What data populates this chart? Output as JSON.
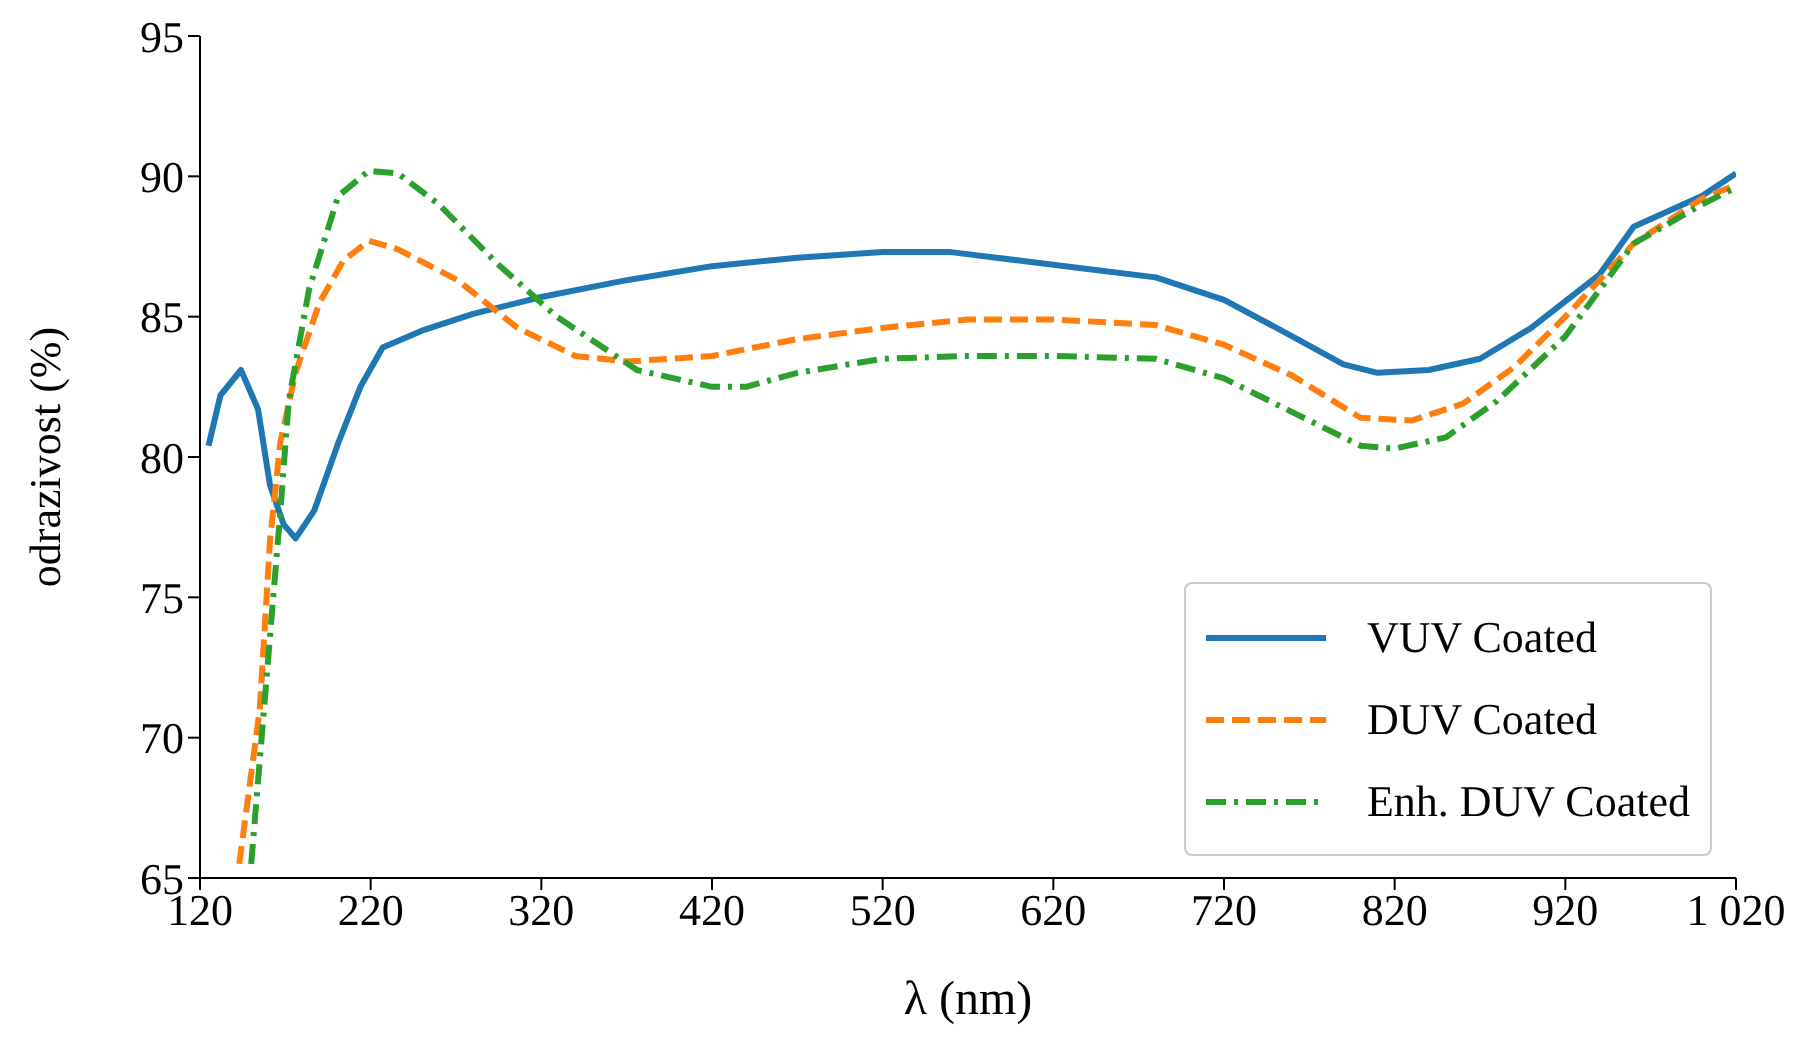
{
  "chart_data": {
    "type": "line",
    "xlabel": "λ (nm)",
    "ylabel": "odrazivost (%)",
    "xlim": [
      120,
      1020
    ],
    "xticks": [
      120,
      220,
      320,
      420,
      520,
      620,
      720,
      820,
      920,
      {
        "value": 1020,
        "label": "1 020"
      }
    ],
    "ylim": [
      65,
      95
    ],
    "yticks": [
      65,
      70,
      75,
      80,
      85,
      90,
      95
    ],
    "grid": false,
    "legend": "bottom right",
    "marker": "none",
    "series": [
      {
        "name": "VUV Coated",
        "color": "#1f77b4",
        "line_style": "solid",
        "x": [
          125,
          132,
          144,
          154,
          161,
          169,
          176,
          187,
          201,
          214,
          227,
          250,
          280,
          320,
          370,
          420,
          470,
          520,
          560,
          600,
          640,
          680,
          720,
          760,
          790,
          810,
          840,
          870,
          900,
          940,
          960,
          1000,
          1020
        ],
        "values": [
          80.4,
          82.2,
          83.1,
          81.7,
          79,
          77.6,
          77.1,
          78.1,
          80.5,
          82.5,
          83.9,
          84.5,
          85.1,
          85.7,
          86.3,
          86.8,
          87.1,
          87.3,
          87.3,
          87,
          86.7,
          86.4,
          85.6,
          84.3,
          83.3,
          83,
          83.1,
          83.5,
          84.6,
          86.5,
          88.2,
          89.3,
          90.1
        ]
      },
      {
        "name": "DUV Coated",
        "color": "#ff7f0e",
        "line_style": "dashed",
        "x": [
          143,
          155,
          161,
          167,
          176,
          190,
          204,
          219,
          236,
          271,
          306,
          340,
          370,
          420,
          470,
          520,
          570,
          620,
          680,
          720,
          760,
          800,
          830,
          860,
          890,
          920,
          960,
          1000,
          1020
        ],
        "values": [
          65.5,
          71,
          77,
          80.5,
          83,
          85.5,
          87,
          87.7,
          87.4,
          86.3,
          84.6,
          83.6,
          83.4,
          83.6,
          84.2,
          84.6,
          84.9,
          84.9,
          84.7,
          84,
          82.9,
          81.4,
          81.3,
          81.9,
          83.2,
          85,
          87.6,
          89.2,
          89.7
        ]
      },
      {
        "name": "Enh. DUV Coated",
        "color": "#2ca02c",
        "line_style": "dashdot",
        "x": [
          150,
          167,
          172,
          184,
          201,
          219,
          236,
          260,
          294,
          329,
          376,
          420,
          440,
          470,
          520,
          570,
          620,
          680,
          720,
          760,
          800,
          820,
          850,
          880,
          920,
          960,
          1000,
          1020
        ],
        "values": [
          65.5,
          78,
          82,
          86,
          89.3,
          90.2,
          90.1,
          89,
          86.9,
          85,
          83.1,
          82.5,
          82.5,
          83,
          83.5,
          83.6,
          83.6,
          83.5,
          82.8,
          81.6,
          80.4,
          80.3,
          80.7,
          82,
          84.3,
          87.6,
          89,
          89.6
        ]
      }
    ]
  }
}
